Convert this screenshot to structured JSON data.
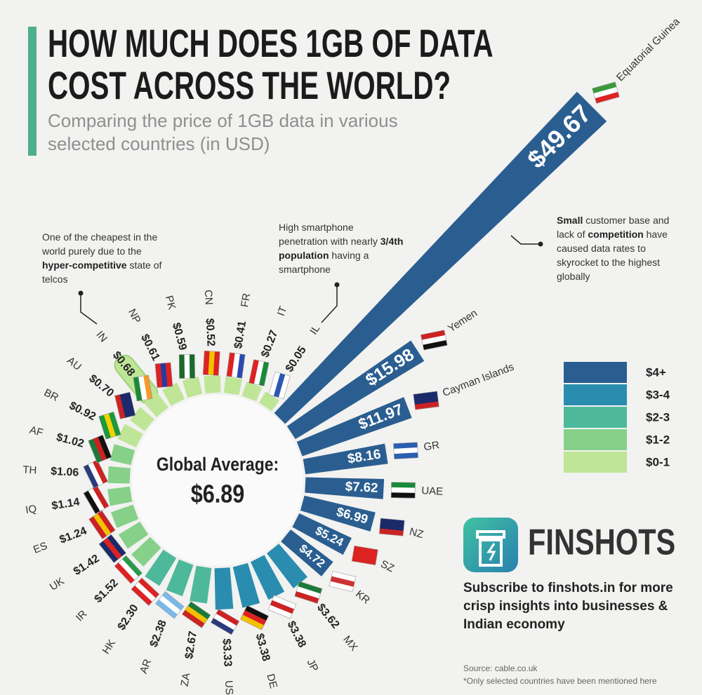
{
  "chart_data": {
    "type": "radial_bar",
    "title": [
      "HOW MUCH DOES 1GB OF DATA",
      "COST ACROSS THE WORLD?"
    ],
    "subtitle": [
      "Comparing the price of 1GB data in various",
      "selected countries (in USD)"
    ],
    "categories": [
      "Equatorial Guinea",
      "Yemen",
      "Cayman Islands",
      "GR",
      "UAE",
      "NZ",
      "SZ",
      "KR",
      "MX",
      "JP",
      "DE",
      "US",
      "ZA",
      "AR",
      "HK",
      "IR",
      "UK",
      "ES",
      "IQ",
      "TH",
      "AF",
      "BR",
      "AU",
      "IN",
      "NP",
      "PK",
      "CN",
      "FR",
      "IT",
      "IL"
    ],
    "values": [
      49.67,
      15.98,
      11.97,
      8.16,
      7.62,
      6.99,
      5.24,
      4.72,
      3.62,
      3.38,
      3.38,
      3.33,
      2.67,
      2.38,
      2.3,
      1.52,
      1.42,
      1.24,
      1.14,
      1.06,
      1.02,
      0.92,
      0.7,
      0.68,
      0.61,
      0.59,
      0.52,
      0.41,
      0.27,
      0.05
    ],
    "value_labels": [
      "$49.67",
      "$15.98",
      "$11.97",
      "$8.16",
      "$7.62",
      "$6.99",
      "$5.24",
      "$4.72",
      "$3.62",
      "$3.38",
      "$3.38",
      "$3.33",
      "$2.67",
      "$2.38",
      "$2.30",
      "$1.52",
      "$1.42",
      "$1.24",
      "$1.14",
      "$1.06",
      "$1.02",
      "$0.92",
      "$0.70",
      "$0.68",
      "$0.61",
      "$0.59",
      "$0.52",
      "$0.41",
      "$0.27",
      "$0.05"
    ],
    "colors": [
      "#2b5e90",
      "#2b5e90",
      "#2b5e90",
      "#2b5e90",
      "#2b5e90",
      "#2b5e90",
      "#2b5e90",
      "#2b5e90",
      "#2a8db0",
      "#2a8db0",
      "#2a8db0",
      "#2a8db0",
      "#4eb89a",
      "#4eb89a",
      "#4eb89a",
      "#86d08a",
      "#86d08a",
      "#86d08a",
      "#86d08a",
      "#86d08a",
      "#86d08a",
      "#bfe597",
      "#bfe597",
      "#bfe597",
      "#bfe597",
      "#bfe597",
      "#bfe597",
      "#bfe597",
      "#bfe597",
      "#bfe597"
    ],
    "legend": [
      {
        "label": "$4+",
        "color": "#2b5e90"
      },
      {
        "label": "$3-4",
        "color": "#2a8db0"
      },
      {
        "label": "$2-3",
        "color": "#4eb89a"
      },
      {
        "label": "$1-2",
        "color": "#86d08a"
      },
      {
        "label": "$0-1",
        "color": "#bfe597"
      }
    ],
    "center_label": "Global Average:",
    "center_value": "$6.89",
    "notes": [
      [
        "One of the cheapest in the world purely due to the ",
        {
          "bold": "hyper-competitive"
        },
        " state of telcos"
      ],
      [
        "High smartphone penetration with nearly ",
        {
          "bold": "3/4th population"
        },
        " having a smartphone"
      ],
      [
        {
          "bold": "Small"
        },
        " customer base and lack of ",
        {
          "bold": "competition"
        },
        " have caused data rates to skyrocket to the highest globally"
      ]
    ]
  },
  "brand": {
    "name": "FINSHOTS",
    "tagline": "Subscribe to finshots.in for more crisp insights into businesses & Indian economy"
  },
  "source": [
    "Source: cable.co.uk",
    "*Only selected countries have been mentioned here"
  ]
}
